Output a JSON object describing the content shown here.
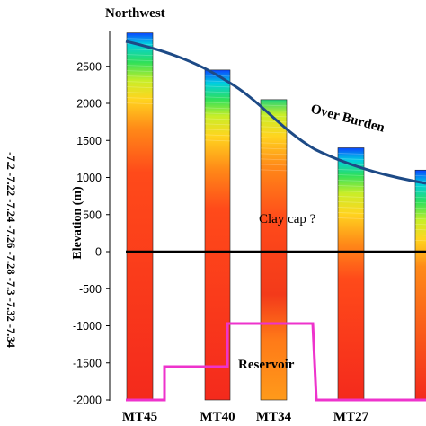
{
  "title": "Northwest",
  "y_axis": {
    "label": "Elevation (m)",
    "ticks": [
      "2500",
      "2000",
      "1500",
      "1000",
      "500",
      "0",
      "-500",
      "-1000",
      "-1500",
      "-2000"
    ],
    "range": [
      -2000,
      2900
    ]
  },
  "colorbar": {
    "labels": [
      "-7.2",
      "-7.22",
      "-7.24",
      "-7.26",
      "-7.28",
      "-7.3",
      "-7.32",
      "-7.34"
    ]
  },
  "wells": [
    {
      "name": "MT45",
      "top_elevation": 2950,
      "bottom_elevation": -2000
    },
    {
      "name": "MT40",
      "top_elevation": 2450,
      "bottom_elevation": -2000
    },
    {
      "name": "MT34",
      "top_elevation": 2050,
      "bottom_elevation": -2000
    },
    {
      "name": "MT27",
      "top_elevation": 1400,
      "bottom_elevation": -2000
    },
    {
      "name": "",
      "top_elevation": 1100,
      "bottom_elevation": -2000
    }
  ],
  "annotations": {
    "over_burden": "Over Burden",
    "clay_cap": "Clay cap ?",
    "reservoir": "Reservoir"
  },
  "colors": {
    "overburden_line": "#1d4a86",
    "reservoir_line": "#ee33cc",
    "sea_level_line": "#000000"
  }
}
